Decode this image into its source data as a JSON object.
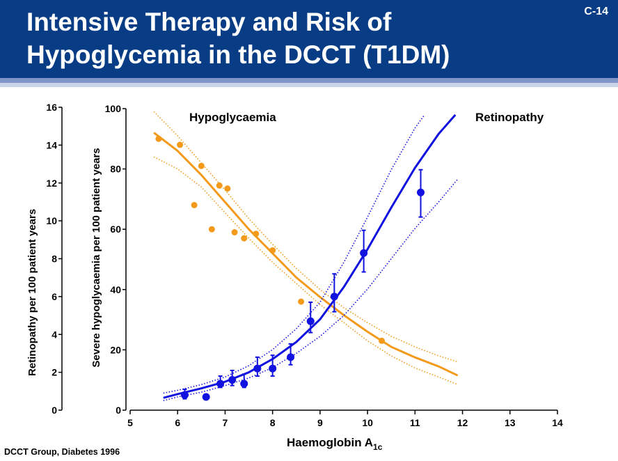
{
  "slide": {
    "title_line1": "Intensive Therapy and Risk of",
    "title_line2": "Hypoglycemia in the DCCT (T1DM)",
    "code": "C-14",
    "source": "DCCT Group, Diabetes 1996"
  },
  "chart_data": {
    "type": "scatter",
    "xlabel_main": "Haemoglobin A",
    "xlabel_sub": "1c",
    "ylabel_left": "Retinopathy per 100 patient years",
    "ylabel_right": "Severe hypoglycaemia per 100 patient years",
    "x_ticks": [
      5,
      6,
      7,
      8,
      9,
      10,
      11,
      12,
      13,
      14
    ],
    "xlim": [
      5,
      14
    ],
    "retinopathy_ticks": [
      0,
      2,
      4,
      6,
      8,
      10,
      12,
      14,
      16
    ],
    "retinopathy_lim": [
      0,
      16
    ],
    "hypoglycaemia_ticks": [
      0,
      20,
      40,
      60,
      80,
      100
    ],
    "hypoglycaemia_lim": [
      0,
      100
    ],
    "colors": {
      "hypoglycaemia": "#f39a1a",
      "retinopathy": "#1111e0"
    },
    "series": [
      {
        "name": "Hypoglycaemia",
        "axis": "hypoglycaemia",
        "points": [
          [
            5.6,
            90
          ],
          [
            6.05,
            88
          ],
          [
            6.35,
            68
          ],
          [
            6.5,
            81
          ],
          [
            6.72,
            60
          ],
          [
            6.88,
            74.5
          ],
          [
            7.05,
            73.5
          ],
          [
            7.2,
            59
          ],
          [
            7.4,
            57
          ],
          [
            7.65,
            58.5
          ],
          [
            8.0,
            53
          ],
          [
            8.6,
            36
          ],
          [
            10.3,
            23
          ]
        ],
        "fit": [
          [
            5.5,
            92
          ],
          [
            6.0,
            86
          ],
          [
            6.5,
            78
          ],
          [
            7.0,
            69
          ],
          [
            7.5,
            60
          ],
          [
            8.0,
            52
          ],
          [
            8.5,
            44
          ],
          [
            9.0,
            37.5
          ],
          [
            9.5,
            31.5
          ],
          [
            10.0,
            26
          ],
          [
            10.5,
            21
          ],
          [
            11.0,
            17.5
          ],
          [
            11.5,
            14.5
          ],
          [
            11.9,
            11.5
          ]
        ],
        "ci_upper": [
          [
            5.5,
            99
          ],
          [
            6.0,
            91
          ],
          [
            6.5,
            82
          ],
          [
            7.0,
            73
          ],
          [
            7.5,
            63.5
          ],
          [
            8.0,
            55
          ],
          [
            8.5,
            47
          ],
          [
            9.0,
            40
          ],
          [
            9.5,
            34
          ],
          [
            10.0,
            29
          ],
          [
            10.5,
            24.5
          ],
          [
            11.0,
            21
          ],
          [
            11.5,
            18
          ],
          [
            11.9,
            16
          ]
        ],
        "ci_lower": [
          [
            5.5,
            84
          ],
          [
            6.0,
            80
          ],
          [
            6.5,
            74
          ],
          [
            7.0,
            65.5
          ],
          [
            7.5,
            57
          ],
          [
            8.0,
            49
          ],
          [
            8.5,
            42
          ],
          [
            9.0,
            35
          ],
          [
            9.5,
            29
          ],
          [
            10.0,
            23
          ],
          [
            10.5,
            18
          ],
          [
            11.0,
            14
          ],
          [
            11.5,
            11
          ],
          [
            11.9,
            8.5
          ]
        ]
      },
      {
        "name": "Retinopathy",
        "axis": "retinopathy",
        "points": [
          {
            "x": 6.15,
            "y": 0.8,
            "lo": 0.6,
            "hi": 1.1
          },
          {
            "x": 6.6,
            "y": 0.7
          },
          {
            "x": 6.9,
            "y": 1.4,
            "lo": 1.2,
            "hi": 1.8
          },
          {
            "x": 7.15,
            "y": 1.6,
            "lo": 1.3,
            "hi": 2.1
          },
          {
            "x": 7.4,
            "y": 1.4,
            "lo": 1.2,
            "hi": 1.9
          },
          {
            "x": 7.68,
            "y": 2.2,
            "lo": 1.8,
            "hi": 2.8
          },
          {
            "x": 8.0,
            "y": 2.2,
            "lo": 1.8,
            "hi": 2.9
          },
          {
            "x": 8.38,
            "y": 2.8,
            "lo": 2.4,
            "hi": 3.5
          },
          {
            "x": 8.8,
            "y": 4.7,
            "lo": 4.1,
            "hi": 5.7
          },
          {
            "x": 9.3,
            "y": 6.0,
            "lo": 5.2,
            "hi": 7.2
          },
          {
            "x": 9.92,
            "y": 8.3,
            "lo": 7.3,
            "hi": 9.5
          },
          {
            "x": 11.12,
            "y": 11.5,
            "lo": 10.2,
            "hi": 12.7
          }
        ],
        "fit": [
          [
            5.7,
            0.65
          ],
          [
            6.0,
            0.85
          ],
          [
            6.5,
            1.15
          ],
          [
            7.0,
            1.5
          ],
          [
            7.5,
            2.0
          ],
          [
            8.0,
            2.7
          ],
          [
            8.5,
            3.6
          ],
          [
            9.0,
            4.8
          ],
          [
            9.5,
            6.5
          ],
          [
            10.0,
            8.5
          ],
          [
            10.5,
            10.7
          ],
          [
            11.0,
            12.8
          ],
          [
            11.5,
            14.6
          ],
          [
            11.85,
            15.6
          ]
        ],
        "ci_upper": [
          [
            5.7,
            0.9
          ],
          [
            6.0,
            1.05
          ],
          [
            6.5,
            1.35
          ],
          [
            7.0,
            1.75
          ],
          [
            7.5,
            2.35
          ],
          [
            8.0,
            3.2
          ],
          [
            8.5,
            4.3
          ],
          [
            9.0,
            5.7
          ],
          [
            9.5,
            7.8
          ],
          [
            10.0,
            10.2
          ],
          [
            10.5,
            12.7
          ],
          [
            11.0,
            14.9
          ],
          [
            11.2,
            15.6
          ]
        ],
        "ci_lower": [
          [
            5.7,
            0.5
          ],
          [
            6.0,
            0.7
          ],
          [
            6.5,
            0.95
          ],
          [
            7.0,
            1.3
          ],
          [
            7.5,
            1.7
          ],
          [
            8.0,
            2.25
          ],
          [
            8.5,
            3.0
          ],
          [
            9.0,
            3.9
          ],
          [
            9.5,
            5.0
          ],
          [
            10.0,
            6.4
          ],
          [
            10.5,
            8.0
          ],
          [
            11.0,
            9.6
          ],
          [
            11.5,
            11.0
          ],
          [
            11.9,
            12.2
          ]
        ]
      }
    ]
  }
}
